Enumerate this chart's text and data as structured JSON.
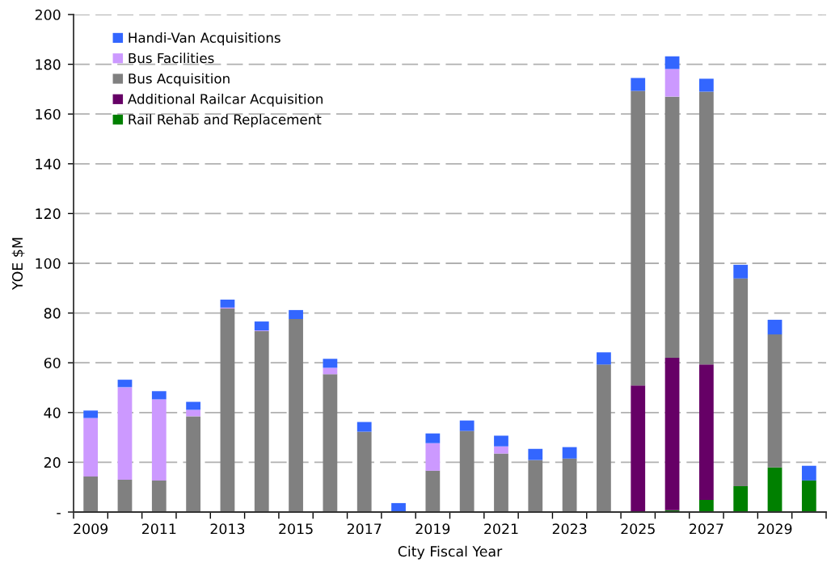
{
  "chart_data": {
    "type": "bar",
    "stacked": true,
    "xlabel": "City Fiscal Year",
    "ylabel": "YOE $M",
    "categories": [
      "2009",
      null,
      "2011",
      null,
      "2013",
      null,
      "2015",
      null,
      "2017",
      null,
      "2019",
      null,
      "2021",
      null,
      "2023",
      null,
      "2025",
      null,
      "2027",
      null,
      "2029",
      null
    ],
    "series": [
      {
        "name": "Rail Rehab and Replacement",
        "color": "#008000",
        "values": [
          null,
          null,
          null,
          null,
          null,
          null,
          null,
          null,
          null,
          null,
          null,
          null,
          null,
          null,
          null,
          null,
          null,
          0.7,
          4.9,
          10.4,
          17.9,
          12.7
        ]
      },
      {
        "name": "Additional Railcar Acquisition",
        "color": "#660066",
        "values": [
          null,
          null,
          null,
          null,
          null,
          null,
          null,
          null,
          null,
          null,
          null,
          null,
          null,
          null,
          null,
          null,
          50.9,
          61.3,
          54.4,
          null,
          null,
          null
        ]
      },
      {
        "name": "Bus Acquisition",
        "color": "#808080",
        "values": [
          14.3,
          13.0,
          12.7,
          38.5,
          81.8,
          72.7,
          77.6,
          55.4,
          32.3,
          null,
          16.6,
          32.6,
          23.5,
          20.9,
          21.5,
          59.3,
          118.4,
          105.0,
          109.7,
          83.5,
          53.5,
          null
        ]
      },
      {
        "name": "Bus Facilities",
        "color": "#cc99ff",
        "values": [
          23.5,
          37.2,
          32.6,
          2.6,
          0.4,
          0.3,
          null,
          2.6,
          null,
          null,
          11.1,
          null,
          2.9,
          null,
          null,
          null,
          null,
          11.1,
          null,
          null,
          null,
          null
        ]
      },
      {
        "name": "Handi-Van Acquisitions",
        "color": "#3366ff",
        "values": [
          3.0,
          3.0,
          3.3,
          3.2,
          3.2,
          3.6,
          3.6,
          3.6,
          3.9,
          3.6,
          3.9,
          4.2,
          4.3,
          4.5,
          4.6,
          4.9,
          5.2,
          5.1,
          5.2,
          5.5,
          5.9,
          5.9
        ]
      }
    ],
    "ylim": [
      0,
      200
    ],
    "yticks": [
      {
        "value": 0,
        "label": "-"
      },
      20,
      40,
      60,
      80,
      100,
      120,
      140,
      160,
      180,
      200
    ],
    "grid": "y",
    "legend": "top left"
  }
}
